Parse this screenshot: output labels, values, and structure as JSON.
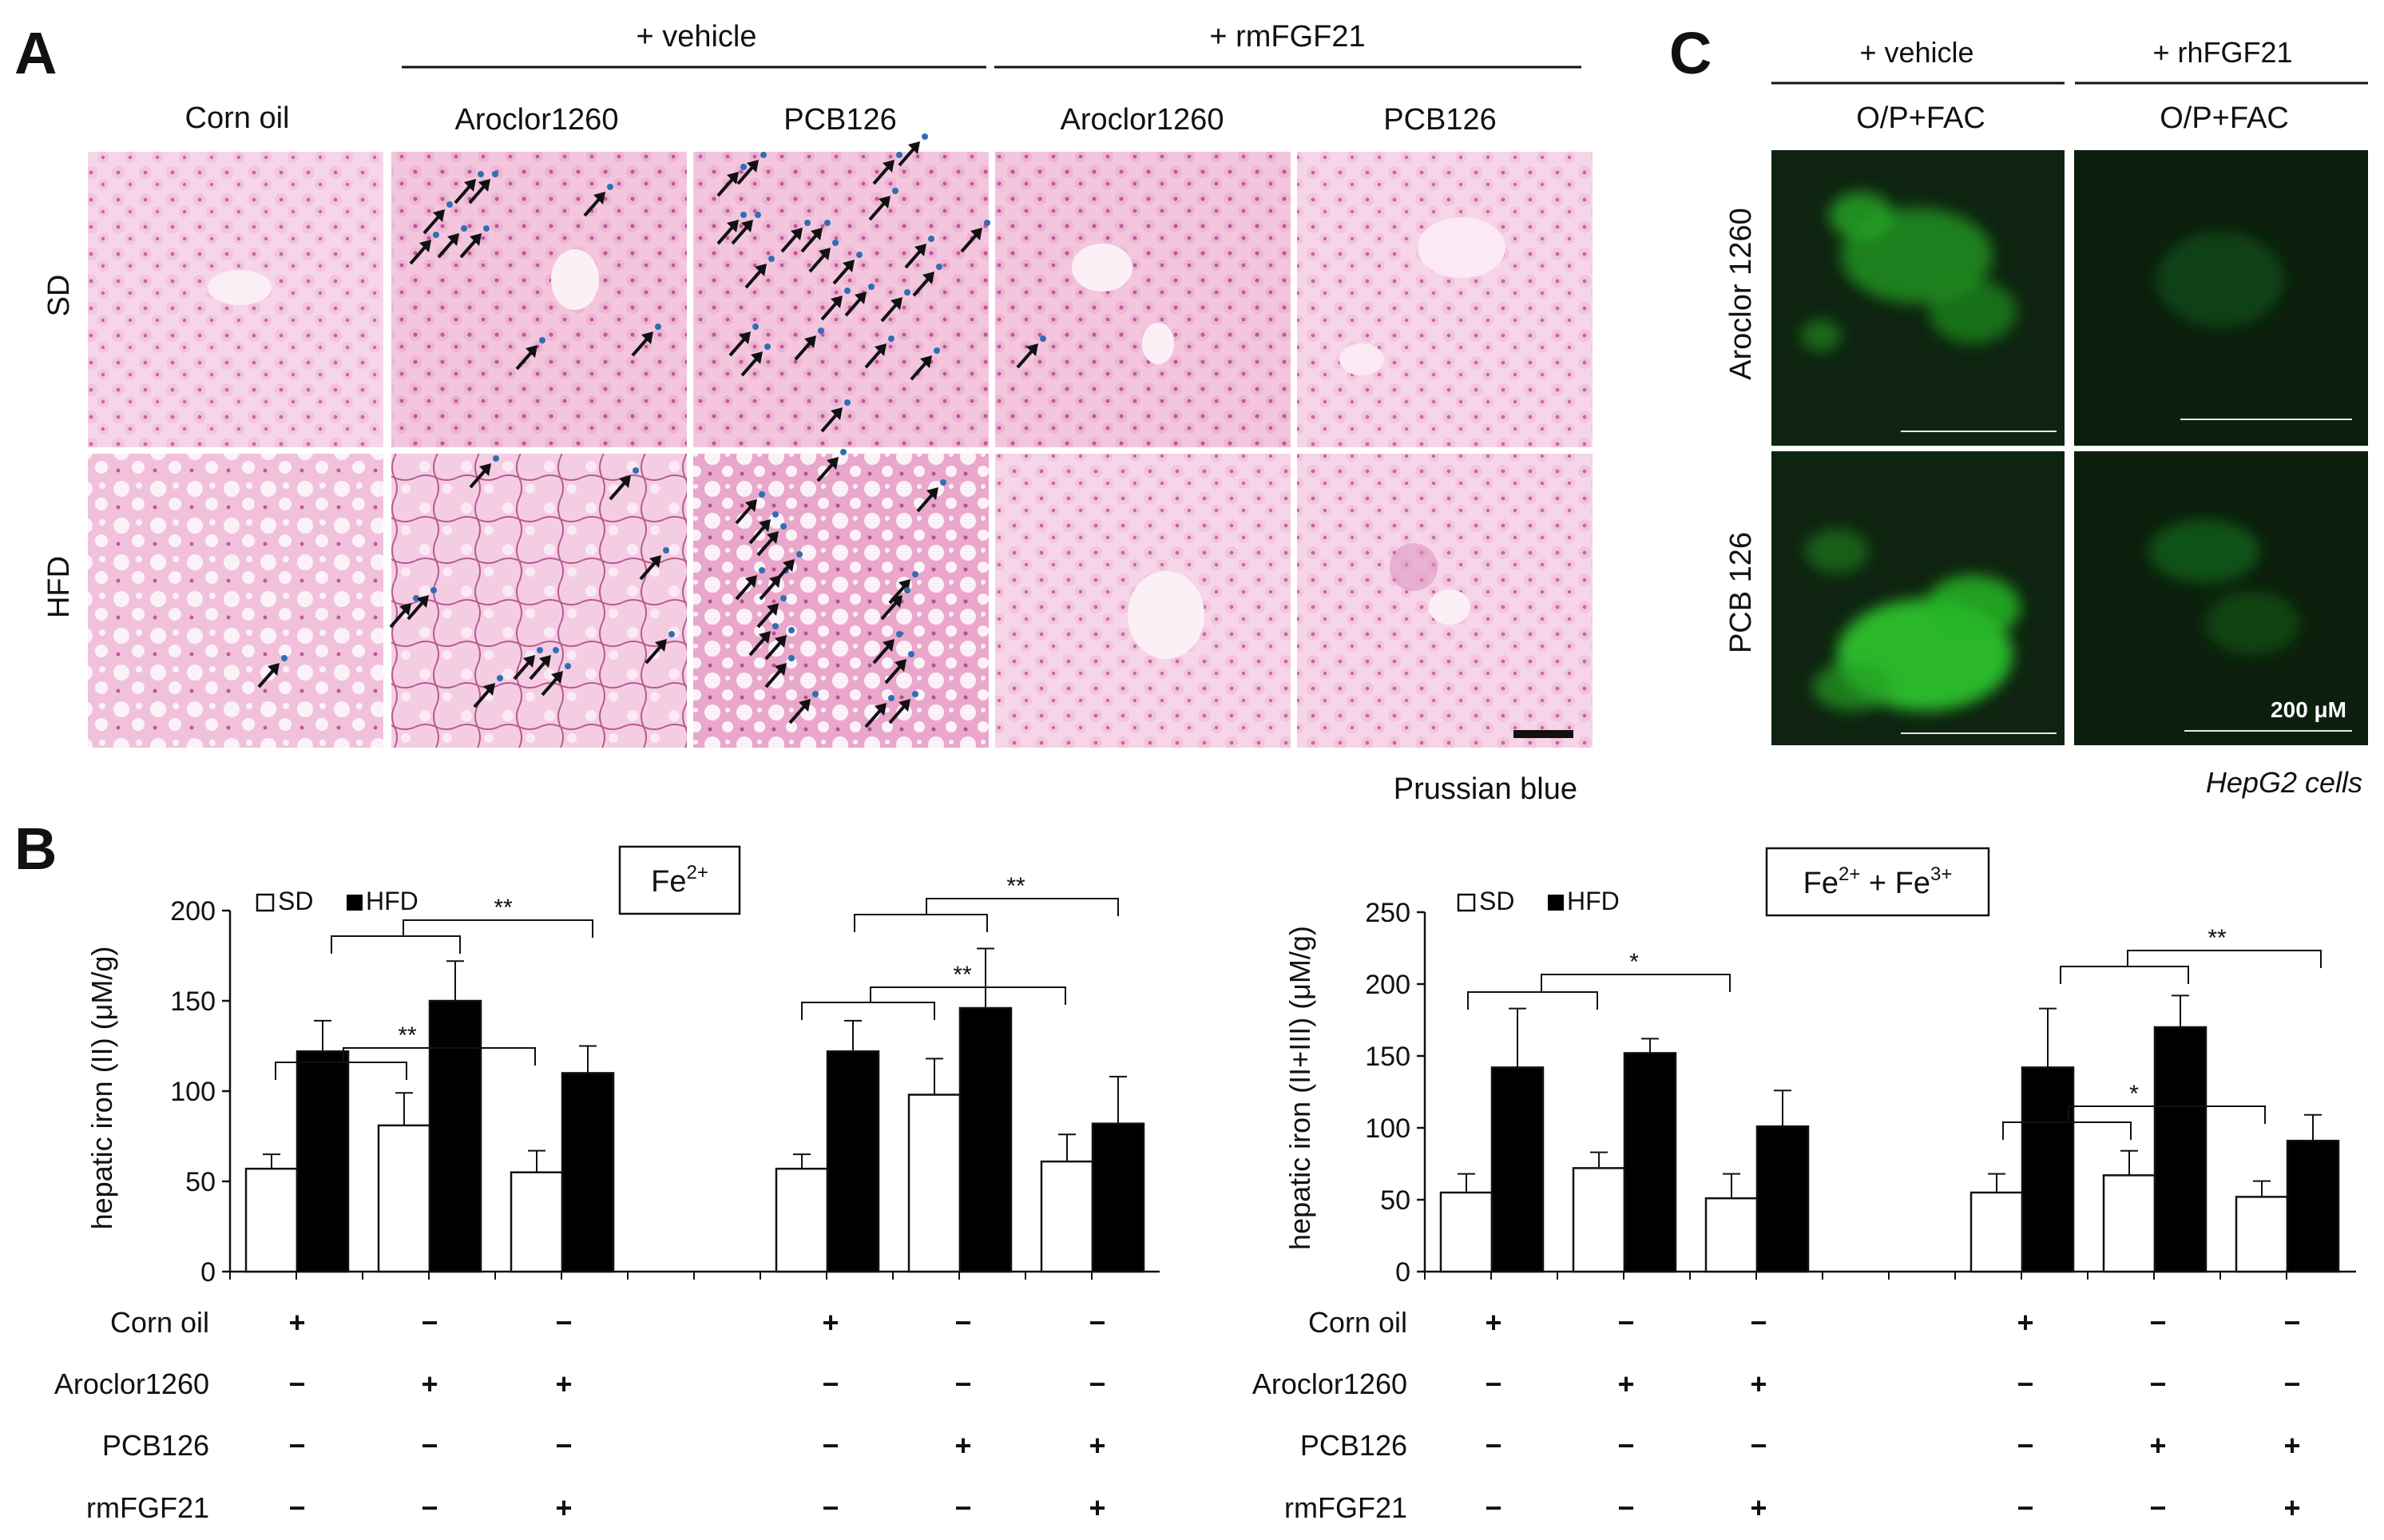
{
  "panels": {
    "A": {
      "letter": "A",
      "group_headers": [
        "+ vehicle",
        "+ rmFGF21"
      ],
      "column_labels": [
        "Corn oil",
        "Aroclor1260",
        "PCB126",
        "Aroclor1260",
        "PCB126"
      ],
      "row_labels": [
        "SD",
        "HFD"
      ],
      "stain_label": "Prussian blue"
    },
    "C": {
      "letter": "C",
      "group_headers": [
        "+ vehicle",
        "+ rhFGF21"
      ],
      "column_labels": [
        "O/P+FAC",
        "O/P+FAC"
      ],
      "row_labels": [
        "Aroclor 1260",
        "PCB 126"
      ],
      "scale_label": "200 μM",
      "cell_line_label": "HepG2 cells"
    },
    "B": {
      "letter": "B",
      "treatment_table": {
        "row_labels": [
          "Corn oil",
          "Aroclor1260",
          "PCB126",
          "rmFGF21"
        ],
        "rows": [
          [
            "+",
            "−",
            "−",
            "+",
            "−",
            "−"
          ],
          [
            "−",
            "+",
            "+",
            "−",
            "−",
            "−"
          ],
          [
            "−",
            "−",
            "−",
            "−",
            "+",
            "+"
          ],
          [
            "−",
            "−",
            "+",
            "−",
            "−",
            "+"
          ]
        ]
      }
    }
  },
  "colors": {
    "histology_bg": "#f2c4dc",
    "fluor_bg": "#0d1f0d",
    "fluor_signal": "#2fd02f",
    "bar_sd": "#ffffff",
    "bar_hfd": "#000000"
  },
  "chart_data": [
    {
      "type": "bar",
      "title_base": "Fe",
      "title_sup": "2+",
      "ylabel": "hepatic iron (II) (μM/g)",
      "ylim": [
        0,
        200
      ],
      "yticks": [
        "0",
        "50",
        "100",
        "150",
        "200"
      ],
      "legend": "top-left",
      "series": [
        {
          "name": "SD",
          "values": [
            57,
            81,
            55,
            57,
            98,
            61
          ],
          "errors": [
            8,
            18,
            12,
            8,
            20,
            15
          ]
        },
        {
          "name": "HFD",
          "values": [
            122,
            150,
            110,
            122,
            146,
            82
          ],
          "errors": [
            17,
            22,
            15,
            17,
            33,
            26
          ]
        }
      ],
      "significance": [
        "**",
        "**",
        "**",
        "**"
      ]
    },
    {
      "type": "bar",
      "title_base": "Fe",
      "title_sup": "2+",
      "title_mid": " + Fe",
      "title_sup2": "3+",
      "ylabel": "hepatic iron (II+III) (μM/g)",
      "ylim": [
        0,
        250
      ],
      "yticks": [
        "0",
        "50",
        "100",
        "150",
        "200",
        "250"
      ],
      "legend": "top-left",
      "series": [
        {
          "name": "SD",
          "values": [
            55,
            72,
            51,
            55,
            67,
            52
          ],
          "errors": [
            13,
            11,
            17,
            13,
            17,
            11
          ]
        },
        {
          "name": "HFD",
          "values": [
            142,
            152,
            101,
            142,
            170,
            91
          ],
          "errors": [
            41,
            10,
            25,
            41,
            22,
            18
          ]
        }
      ],
      "significance": [
        "*",
        "*",
        "**"
      ]
    }
  ]
}
